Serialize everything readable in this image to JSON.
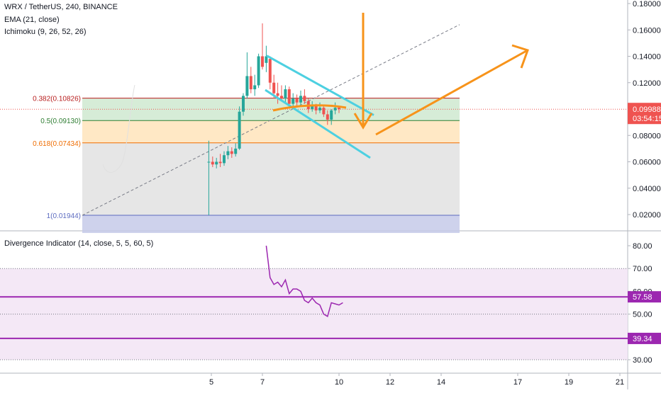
{
  "header": {
    "symbol": "WRX / TetherUS, 240, BINANCE",
    "ema": "EMA (21, close)",
    "ichimoku": "Ichimoku (9, 26, 52, 26)"
  },
  "indicator": {
    "title": "Divergence Indicator (14, close, 5, 5, 60, 5)"
  },
  "colors": {
    "up": "#26a69a",
    "down": "#ef5350",
    "orange": "#f7931a",
    "cyan": "#4dd0e1",
    "purple": "#9c27b0",
    "fib_382": "#b71c1c",
    "fib_05": "#2e7d32",
    "fib_618": "#ef6c00",
    "fib_1": "#5c6bc0",
    "price_tag": "#ef5350",
    "axis_text": "#131722"
  },
  "chart_data": [
    {
      "type": "candlestick",
      "title": "WRX / TetherUS, 240, BINANCE",
      "ylim": [
        0.0,
        0.18
      ],
      "yticks": [
        "0.18000",
        "0.16000",
        "0.14000",
        "0.12000",
        "0.10000",
        "0.08000",
        "0.06000",
        "0.04000",
        "0.02000"
      ],
      "current_price": "0.09988",
      "countdown": "03:54:15",
      "fib_levels": [
        {
          "label": "0.382(0.10826)",
          "value": 0.10826
        },
        {
          "label": "0.5(0.09130)",
          "value": 0.0913
        },
        {
          "label": "0.618(0.07434)",
          "value": 0.07434
        },
        {
          "label": "1(0.01944)",
          "value": 0.01944
        }
      ],
      "candles": [
        {
          "x": 4.9,
          "o": 0.06,
          "h": 0.076,
          "l": 0.0195,
          "c": 0.06
        },
        {
          "x": 5.05,
          "o": 0.06,
          "h": 0.064,
          "l": 0.056,
          "c": 0.058
        },
        {
          "x": 5.2,
          "o": 0.058,
          "h": 0.063,
          "l": 0.055,
          "c": 0.06
        },
        {
          "x": 5.35,
          "o": 0.06,
          "h": 0.066,
          "l": 0.056,
          "c": 0.059
        },
        {
          "x": 5.5,
          "o": 0.059,
          "h": 0.068,
          "l": 0.057,
          "c": 0.065
        },
        {
          "x": 5.65,
          "o": 0.065,
          "h": 0.072,
          "l": 0.062,
          "c": 0.068
        },
        {
          "x": 5.8,
          "o": 0.068,
          "h": 0.071,
          "l": 0.063,
          "c": 0.066
        },
        {
          "x": 5.95,
          "o": 0.066,
          "h": 0.074,
          "l": 0.064,
          "c": 0.07
        },
        {
          "x": 6.1,
          "o": 0.07,
          "h": 0.102,
          "l": 0.069,
          "c": 0.098
        },
        {
          "x": 6.25,
          "o": 0.098,
          "h": 0.112,
          "l": 0.095,
          "c": 0.11
        },
        {
          "x": 6.4,
          "o": 0.11,
          "h": 0.143,
          "l": 0.108,
          "c": 0.125
        },
        {
          "x": 6.55,
          "o": 0.125,
          "h": 0.132,
          "l": 0.112,
          "c": 0.115
        },
        {
          "x": 6.7,
          "o": 0.115,
          "h": 0.126,
          "l": 0.11,
          "c": 0.118
        },
        {
          "x": 6.85,
          "o": 0.118,
          "h": 0.142,
          "l": 0.116,
          "c": 0.14
        },
        {
          "x": 7.0,
          "o": 0.14,
          "h": 0.165,
          "l": 0.13,
          "c": 0.132
        },
        {
          "x": 7.15,
          "o": 0.135,
          "h": 0.148,
          "l": 0.128,
          "c": 0.14
        },
        {
          "x": 7.3,
          "o": 0.138,
          "h": 0.14,
          "l": 0.115,
          "c": 0.12
        },
        {
          "x": 7.45,
          "o": 0.12,
          "h": 0.126,
          "l": 0.108,
          "c": 0.112
        },
        {
          "x": 7.6,
          "o": 0.112,
          "h": 0.12,
          "l": 0.104,
          "c": 0.11
        },
        {
          "x": 7.75,
          "o": 0.11,
          "h": 0.118,
          "l": 0.106,
          "c": 0.108
        },
        {
          "x": 7.9,
          "o": 0.108,
          "h": 0.118,
          "l": 0.104,
          "c": 0.115
        },
        {
          "x": 8.05,
          "o": 0.115,
          "h": 0.117,
          "l": 0.102,
          "c": 0.104
        },
        {
          "x": 8.2,
          "o": 0.104,
          "h": 0.112,
          "l": 0.1,
          "c": 0.108
        },
        {
          "x": 8.35,
          "o": 0.108,
          "h": 0.111,
          "l": 0.101,
          "c": 0.105
        },
        {
          "x": 8.5,
          "o": 0.105,
          "h": 0.114,
          "l": 0.103,
          "c": 0.11
        },
        {
          "x": 8.65,
          "o": 0.11,
          "h": 0.115,
          "l": 0.104,
          "c": 0.106
        },
        {
          "x": 8.8,
          "o": 0.106,
          "h": 0.108,
          "l": 0.097,
          "c": 0.1
        },
        {
          "x": 8.95,
          "o": 0.1,
          "h": 0.106,
          "l": 0.098,
          "c": 0.103
        },
        {
          "x": 9.1,
          "o": 0.103,
          "h": 0.104,
          "l": 0.096,
          "c": 0.099
        },
        {
          "x": 9.25,
          "o": 0.099,
          "h": 0.105,
          "l": 0.097,
          "c": 0.101
        },
        {
          "x": 9.4,
          "o": 0.101,
          "h": 0.102,
          "l": 0.094,
          "c": 0.096
        },
        {
          "x": 9.55,
          "o": 0.096,
          "h": 0.099,
          "l": 0.088,
          "c": 0.092
        },
        {
          "x": 9.7,
          "o": 0.092,
          "h": 0.1,
          "l": 0.088,
          "c": 0.099
        },
        {
          "x": 9.85,
          "o": 0.099,
          "h": 0.105,
          "l": 0.096,
          "c": 0.101
        },
        {
          "x": 10.0,
          "o": 0.101,
          "h": 0.102,
          "l": 0.097,
          "c": 0.0999
        }
      ],
      "xticks": [
        5,
        7,
        10,
        12,
        14,
        17,
        19,
        21
      ]
    },
    {
      "type": "line",
      "title": "Divergence Indicator (14, close, 5, 5, 60, 5)",
      "ylim": [
        25,
        85
      ],
      "yticks": [
        "80.00",
        "70.00",
        "60.00",
        "50.00",
        "40.00",
        "30.00"
      ],
      "badges": [
        "57.58",
        "39.34"
      ],
      "levels": [
        57.58,
        39.34
      ],
      "dotted_levels": [
        70,
        50,
        30
      ],
      "series": [
        {
          "x": [
            7.15,
            7.3,
            7.45,
            7.6,
            7.75,
            7.9,
            8.05,
            8.2,
            8.35,
            8.5,
            8.65,
            8.8,
            8.95,
            9.1,
            9.25,
            9.4,
            9.55,
            9.7,
            9.85,
            10.0,
            10.15
          ],
          "y": [
            80,
            66,
            63,
            64,
            62,
            65,
            59,
            61,
            61,
            60,
            56,
            55,
            57,
            55,
            54,
            50,
            49,
            55,
            54.5,
            54,
            55
          ]
        }
      ]
    }
  ]
}
